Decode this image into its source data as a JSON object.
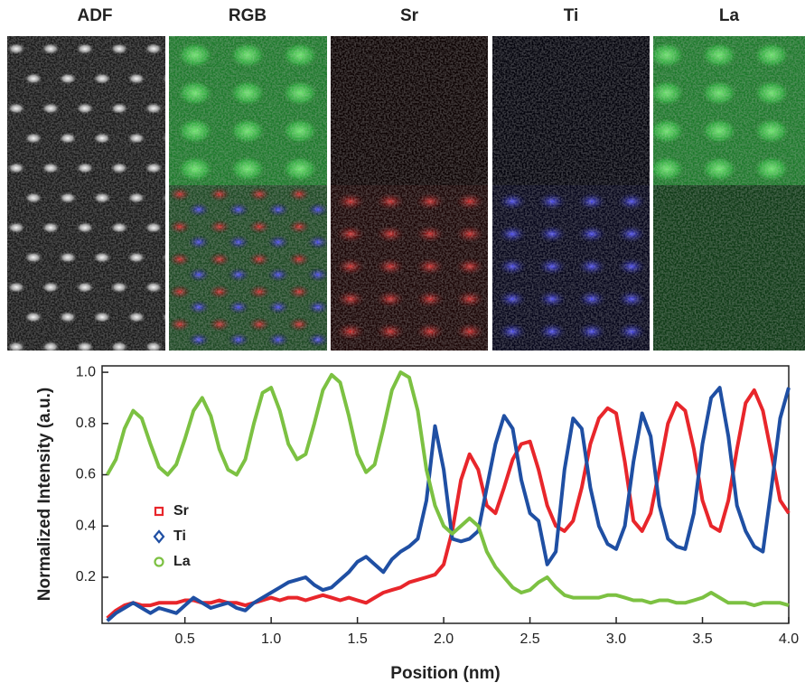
{
  "images": {
    "titles": [
      "ADF",
      "RGB",
      "Sr",
      "Ti",
      "La"
    ]
  },
  "chart_data": {
    "type": "line",
    "x_label": "Position (nm)",
    "y_label": "Normalized Intensity (a.u.)",
    "xlim": [
      0.02,
      4.0
    ],
    "ylim": [
      0.02,
      1.025
    ],
    "xticks": [
      0.5,
      {
        "value": 1,
        "label": "1.0"
      },
      1.5,
      {
        "value": 2,
        "label": "2.0"
      },
      2.5,
      {
        "value": 3,
        "label": "3.0"
      },
      3.5,
      {
        "value": 4,
        "label": "4.0"
      }
    ],
    "yticks": [
      0.2,
      0.4,
      0.6,
      0.8,
      {
        "value": 1,
        "label": "1.0"
      }
    ],
    "x": [
      0.05,
      0.1,
      0.15,
      0.2,
      0.25,
      0.3,
      0.35,
      0.4,
      0.45,
      0.5,
      0.55,
      0.6,
      0.65,
      0.7,
      0.75,
      0.8,
      0.85,
      0.9,
      0.95,
      1.0,
      1.05,
      1.1,
      1.15,
      1.2,
      1.25,
      1.3,
      1.35,
      1.4,
      1.45,
      1.5,
      1.55,
      1.6,
      1.65,
      1.7,
      1.75,
      1.8,
      1.85,
      1.9,
      1.95,
      2.0,
      2.05,
      2.1,
      2.15,
      2.2,
      2.25,
      2.3,
      2.35,
      2.4,
      2.45,
      2.5,
      2.55,
      2.6,
      2.65,
      2.7,
      2.75,
      2.8,
      2.85,
      2.9,
      2.95,
      3.0,
      3.05,
      3.1,
      3.15,
      3.2,
      3.25,
      3.3,
      3.35,
      3.4,
      3.45,
      3.5,
      3.55,
      3.6,
      3.65,
      3.7,
      3.75,
      3.8,
      3.85,
      3.9,
      3.95,
      4.0
    ],
    "series": [
      {
        "name": "Sr",
        "color": "#e8262b",
        "marker": "square",
        "values": [
          0.04,
          0.07,
          0.09,
          0.1,
          0.09,
          0.09,
          0.1,
          0.1,
          0.1,
          0.11,
          0.11,
          0.1,
          0.1,
          0.11,
          0.1,
          0.1,
          0.09,
          0.1,
          0.11,
          0.12,
          0.11,
          0.12,
          0.12,
          0.11,
          0.12,
          0.13,
          0.12,
          0.11,
          0.12,
          0.11,
          0.1,
          0.12,
          0.14,
          0.15,
          0.16,
          0.18,
          0.19,
          0.2,
          0.21,
          0.25,
          0.38,
          0.58,
          0.68,
          0.62,
          0.48,
          0.45,
          0.55,
          0.66,
          0.72,
          0.73,
          0.62,
          0.48,
          0.4,
          0.38,
          0.42,
          0.55,
          0.72,
          0.82,
          0.86,
          0.84,
          0.65,
          0.42,
          0.38,
          0.45,
          0.62,
          0.8,
          0.88,
          0.85,
          0.7,
          0.5,
          0.4,
          0.38,
          0.5,
          0.7,
          0.88,
          0.93,
          0.85,
          0.68,
          0.5,
          0.45
        ]
      },
      {
        "name": "Ti",
        "color": "#1f4fa3",
        "marker": "diamond",
        "values": [
          0.03,
          0.06,
          0.08,
          0.1,
          0.08,
          0.06,
          0.08,
          0.07,
          0.06,
          0.09,
          0.12,
          0.1,
          0.08,
          0.09,
          0.1,
          0.08,
          0.07,
          0.1,
          0.12,
          0.14,
          0.16,
          0.18,
          0.19,
          0.2,
          0.17,
          0.15,
          0.16,
          0.19,
          0.22,
          0.26,
          0.28,
          0.25,
          0.22,
          0.27,
          0.3,
          0.32,
          0.35,
          0.5,
          0.79,
          0.62,
          0.35,
          0.34,
          0.35,
          0.38,
          0.55,
          0.72,
          0.83,
          0.78,
          0.58,
          0.45,
          0.42,
          0.25,
          0.3,
          0.62,
          0.82,
          0.78,
          0.55,
          0.4,
          0.33,
          0.31,
          0.4,
          0.65,
          0.84,
          0.75,
          0.48,
          0.35,
          0.32,
          0.31,
          0.45,
          0.72,
          0.9,
          0.94,
          0.75,
          0.48,
          0.38,
          0.32,
          0.3,
          0.55,
          0.82,
          0.94
        ]
      },
      {
        "name": "La",
        "color": "#7cc142",
        "marker": "circle",
        "values": [
          0.6,
          0.66,
          0.78,
          0.85,
          0.82,
          0.72,
          0.63,
          0.6,
          0.64,
          0.74,
          0.85,
          0.9,
          0.83,
          0.7,
          0.62,
          0.6,
          0.66,
          0.8,
          0.92,
          0.94,
          0.85,
          0.72,
          0.66,
          0.68,
          0.8,
          0.93,
          0.99,
          0.96,
          0.83,
          0.68,
          0.61,
          0.64,
          0.78,
          0.93,
          1.0,
          0.98,
          0.85,
          0.62,
          0.48,
          0.4,
          0.37,
          0.4,
          0.43,
          0.4,
          0.3,
          0.24,
          0.2,
          0.16,
          0.14,
          0.15,
          0.18,
          0.2,
          0.16,
          0.13,
          0.12,
          0.12,
          0.12,
          0.12,
          0.13,
          0.13,
          0.12,
          0.11,
          0.11,
          0.1,
          0.11,
          0.11,
          0.1,
          0.1,
          0.11,
          0.12,
          0.14,
          0.12,
          0.1,
          0.1,
          0.1,
          0.09,
          0.1,
          0.1,
          0.1,
          0.09
        ]
      }
    ]
  }
}
